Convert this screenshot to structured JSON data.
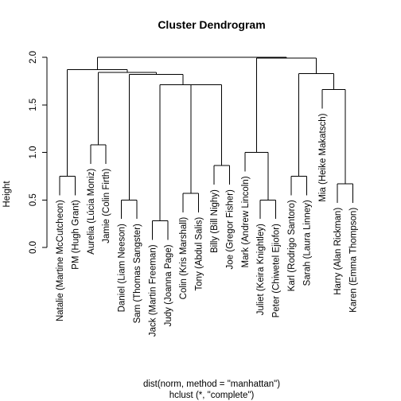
{
  "chart_data": {
    "type": "dendrogram",
    "title": "Cluster Dendrogram",
    "ylabel": "Height",
    "xlabel": "dist(norm, method = \"manhattan\")",
    "sub": "hclust (*, \"complete\")",
    "ylim": [
      0,
      2.0
    ],
    "yticks": [
      0.0,
      0.5,
      1.0,
      1.5,
      2.0
    ],
    "ytick_labels": [
      "0.0",
      "0.5",
      "1.0",
      "1.5",
      "2.0"
    ],
    "leaves": [
      "Natalie (Martine McCutcheon)",
      "PM (Hugh Grant)",
      "Aurelia (Lúcia Moniz)",
      "Jamie (Colin Firth)",
      "Daniel (Liam Neeson)",
      "Sam (Thomas Sangster)",
      "Jack (Martin Freeman)",
      "Judy (Joanna Page)",
      "Colin (Kris Marshall)",
      "Tony (Abdul Salis)",
      "Billy (Bill Nighy)",
      "Joe (Gregor Fisher)",
      "Mark (Andrew Lincoln)",
      "Juliet (Keira Knightley)",
      "Peter (Chiwetel Ejiofor)",
      "Karl (Rodrigo Santoro)",
      "Sarah (Laura Linney)",
      "Mia (Heike Makatsch)",
      "Harry (Alan Rickman)",
      "Karen (Emma Thompson)"
    ],
    "merges": [
      {
        "id": "m1",
        "left": "L7",
        "right": "L8",
        "height": 0.28
      },
      {
        "id": "m2",
        "left": "L5",
        "right": "L6",
        "height": 0.5
      },
      {
        "id": "m3",
        "left": "L14",
        "right": "L15",
        "height": 0.5
      },
      {
        "id": "m4",
        "left": "L9",
        "right": "L10",
        "height": 0.57
      },
      {
        "id": "m5",
        "left": "L19",
        "right": "L20",
        "height": 0.67
      },
      {
        "id": "m6",
        "left": "L1",
        "right": "L2",
        "height": 0.75
      },
      {
        "id": "m7",
        "left": "L16",
        "right": "L17",
        "height": 0.75
      },
      {
        "id": "m8",
        "left": "L11",
        "right": "L12",
        "height": 0.86
      },
      {
        "id": "m9",
        "left": "L13",
        "right": "m3",
        "height": 1.0
      },
      {
        "id": "m10",
        "left": "L3",
        "right": "L4",
        "height": 1.08
      },
      {
        "id": "m11",
        "left": "L18",
        "right": "m5",
        "height": 1.66
      },
      {
        "id": "m12",
        "left": "m4",
        "right": "m8",
        "height": 1.71
      },
      {
        "id": "m13",
        "left": "m1",
        "right": "m12",
        "height": 1.71
      },
      {
        "id": "m14",
        "left": "m2",
        "right": "m13",
        "height": 1.82
      },
      {
        "id": "m15",
        "left": "m7",
        "right": "m11",
        "height": 1.83
      },
      {
        "id": "m16",
        "left": "m10",
        "right": "m14",
        "height": 1.84
      },
      {
        "id": "m17",
        "left": "m6",
        "right": "m16",
        "height": 1.87
      },
      {
        "id": "m18",
        "left": "m9",
        "right": "m15",
        "height": 1.99
      },
      {
        "id": "m19",
        "left": "m17",
        "right": "m18",
        "height": 2.0
      }
    ]
  }
}
